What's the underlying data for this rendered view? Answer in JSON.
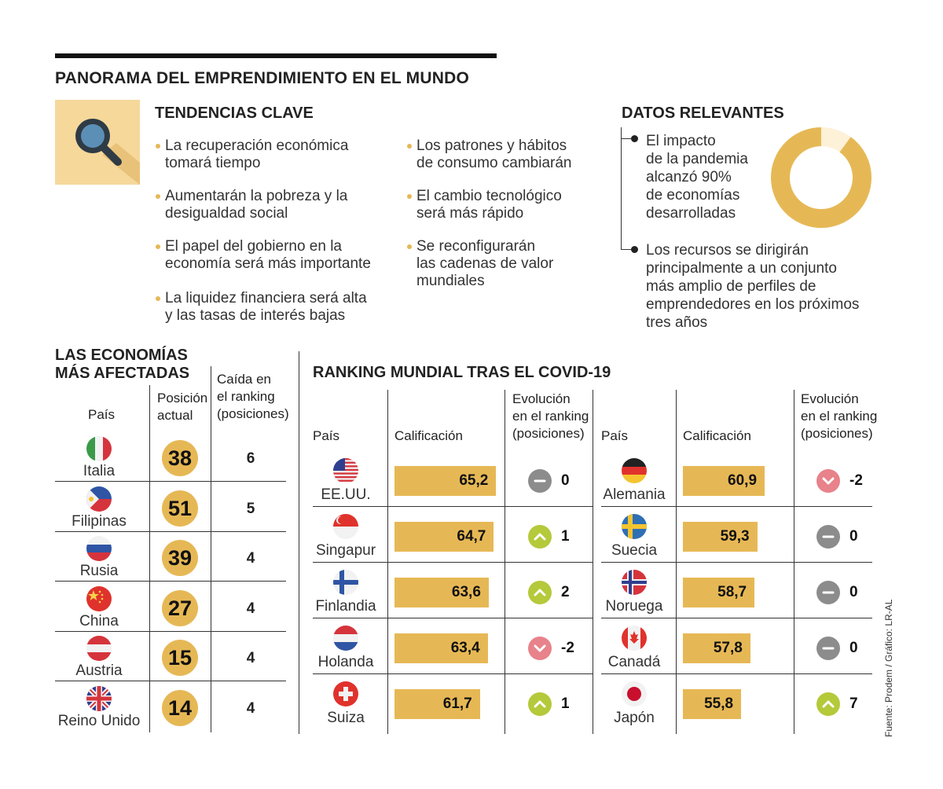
{
  "title": "PANORAMA DEL EMPRENDIMIENTO EN EL MUNDO",
  "tendencias": {
    "title": "TENDENCIAS CLAVE",
    "left": [
      [
        "La recuperación económica",
        "tomará tiempo"
      ],
      [
        "Aumentarán la pobreza y la",
        "desigualdad social"
      ],
      [
        "El papel del gobierno en la",
        "economía será más importante"
      ],
      [
        "La liquidez financiera será alta",
        "y las tasas de interés bajas"
      ]
    ],
    "right": [
      [
        "Los patrones y hábitos",
        "de consumo cambiarán"
      ],
      [
        "El cambio tecnológico",
        "será más rápido"
      ],
      [
        "Se reconfigurarán",
        "las cadenas de valor",
        "mundiales"
      ]
    ]
  },
  "datos": {
    "title": "DATOS RELEVANTES",
    "item1": [
      "El impacto",
      "de la pandemia",
      "alcanzó 90%",
      "de economías",
      "desarrolladas"
    ],
    "item2": [
      "Los recursos se dirigirán",
      "principalmente a un conjunto",
      "más amplio de perfiles de",
      "emprendedores en los próximos",
      "tres años"
    ],
    "donut_percent": 90,
    "donut_color": "#e6b855",
    "donut_rest_color": "#fdf1d8"
  },
  "afectadas": {
    "title": [
      "LAS ECONOMÍAS",
      "MÁS AFECTADAS"
    ],
    "h_pais": "País",
    "h_pos": [
      "Posición",
      "actual"
    ],
    "h_caida": [
      "Caída en",
      "el ranking",
      "(posiciones)"
    ],
    "rows": [
      {
        "country": "Italia",
        "flag": "it",
        "pos": "38",
        "drop": "6"
      },
      {
        "country": "Filipinas",
        "flag": "ph",
        "pos": "51",
        "drop": "5"
      },
      {
        "country": "Rusia",
        "flag": "ru",
        "pos": "39",
        "drop": "4"
      },
      {
        "country": "China",
        "flag": "cn",
        "pos": "27",
        "drop": "4"
      },
      {
        "country": "Austria",
        "flag": "at",
        "pos": "15",
        "drop": "4"
      },
      {
        "country": "Reino Unido",
        "flag": "gb",
        "pos": "14",
        "drop": "4"
      }
    ]
  },
  "ranking": {
    "title": "RANKING MUNDIAL TRAS EL COVID-19",
    "h_pais": "País",
    "h_calif": "Calificación",
    "h_evo": [
      "Evolución",
      "en el ranking",
      "(posiciones)"
    ],
    "score_min": 50,
    "score_max": 66,
    "left": [
      {
        "country": "EE.UU.",
        "flag": "us",
        "score": 65.2,
        "score_label": "65,2",
        "evo": "0",
        "dir": "same"
      },
      {
        "country": "Singapur",
        "flag": "sg",
        "score": 64.7,
        "score_label": "64,7",
        "evo": "1",
        "dir": "up"
      },
      {
        "country": "Finlandia",
        "flag": "fi",
        "score": 63.6,
        "score_label": "63,6",
        "evo": "2",
        "dir": "up"
      },
      {
        "country": "Holanda",
        "flag": "nl",
        "score": 63.4,
        "score_label": "63,4",
        "evo": "-2",
        "dir": "down"
      },
      {
        "country": "Suiza",
        "flag": "ch",
        "score": 61.7,
        "score_label": "61,7",
        "evo": "1",
        "dir": "up"
      }
    ],
    "right": [
      {
        "country": "Alemania",
        "flag": "de",
        "score": 60.9,
        "score_label": "60,9",
        "evo": "-2",
        "dir": "down"
      },
      {
        "country": "Suecia",
        "flag": "se",
        "score": 59.3,
        "score_label": "59,3",
        "evo": "0",
        "dir": "same"
      },
      {
        "country": "Noruega",
        "flag": "no",
        "score": 58.7,
        "score_label": "58,7",
        "evo": "0",
        "dir": "same"
      },
      {
        "country": "Canadá",
        "flag": "ca",
        "score": 57.8,
        "score_label": "57,8",
        "evo": "0",
        "dir": "same"
      },
      {
        "country": "Japón",
        "flag": "jp",
        "score": 55.8,
        "score_label": "55,8",
        "evo": "7",
        "dir": "up"
      }
    ]
  },
  "colors": {
    "accent": "#e6b855",
    "up": "#b5c93a",
    "down": "#e8828b",
    "same": "#8c8c8c"
  },
  "source": "Fuente: Prodem / Gráfico: LR-AL"
}
